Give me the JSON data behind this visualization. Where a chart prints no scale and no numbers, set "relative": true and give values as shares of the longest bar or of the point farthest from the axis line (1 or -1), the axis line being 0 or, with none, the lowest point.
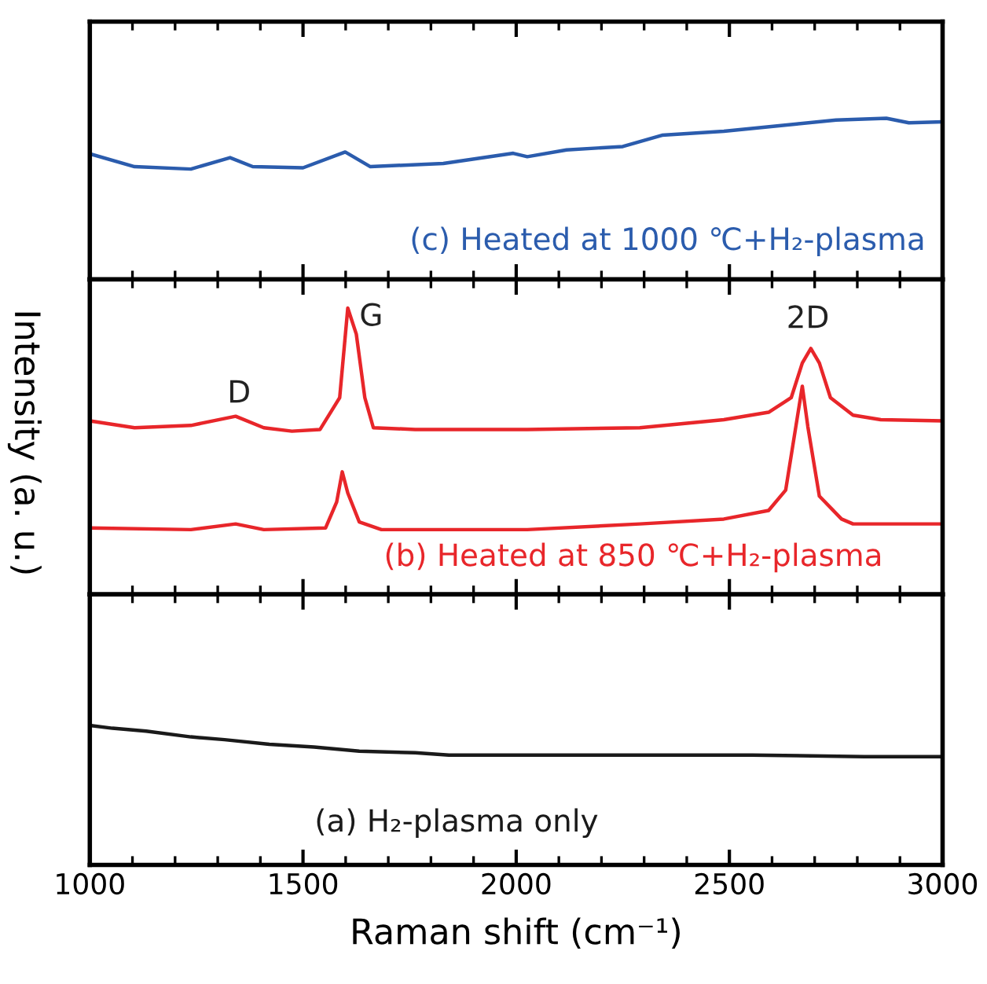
{
  "chart_data": [
    {
      "type": "line",
      "relative": true,
      "tick_labels": false,
      "xlim": [
        1000,
        3000
      ],
      "xticks": [
        1000,
        1500,
        2000,
        2500,
        3000
      ],
      "grid": false,
      "legend": false,
      "annotations": [
        "(c) Heated at 1000 ℃+H₂-plasma"
      ],
      "series": [
        {
          "color": "#2b5cad",
          "x": [
            1000,
            1105,
            1237,
            1329,
            1382,
            1500,
            1599,
            1658,
            1829,
            1993,
            2026,
            2118,
            2250,
            2342,
            2487,
            2658,
            2750,
            2868,
            2921,
            3000
          ],
          "values": [
            0.78,
            0.7,
            0.685,
            0.756,
            0.7,
            0.693,
            0.791,
            0.7,
            0.72,
            0.783,
            0.762,
            0.804,
            0.825,
            0.895,
            0.92,
            0.965,
            0.989,
            1.0,
            0.972,
            0.978
          ]
        }
      ]
    },
    {
      "type": "line",
      "relative": true,
      "tick_labels": false,
      "xlim": [
        1000,
        3000
      ],
      "xticks": [
        1000,
        1500,
        2000,
        2500,
        3000
      ],
      "grid": false,
      "legend": false,
      "ylabel": "Intensity (a. u.)",
      "annotations": [
        "(b) Heated at 850 ℃+H₂-plasma",
        "D",
        "G",
        "2D"
      ],
      "series": [
        {
          "color": "#e8262a",
          "x": [
            1000,
            1105,
            1237,
            1342,
            1408,
            1474,
            1540,
            1586,
            1605,
            1625,
            1645,
            1665,
            1763,
            2026,
            2290,
            2487,
            2592,
            2645,
            2671,
            2691,
            2711,
            2737,
            2790,
            2855,
            3000
          ],
          "values": [
            0.606,
            0.582,
            0.59,
            0.622,
            0.582,
            0.57,
            0.576,
            0.687,
            1.0,
            0.909,
            0.687,
            0.582,
            0.576,
            0.576,
            0.582,
            0.61,
            0.636,
            0.687,
            0.808,
            0.859,
            0.808,
            0.687,
            0.626,
            0.61,
            0.606
          ]
        },
        {
          "color": "#e8262a",
          "x": [
            1000,
            1237,
            1342,
            1408,
            1553,
            1579,
            1592,
            1605,
            1632,
            1684,
            2026,
            2290,
            2487,
            2592,
            2632,
            2658,
            2671,
            2684,
            2711,
            2763,
            2790,
            3000
          ],
          "values": [
            0.232,
            0.226,
            0.246,
            0.226,
            0.232,
            0.323,
            0.428,
            0.354,
            0.253,
            0.226,
            0.226,
            0.246,
            0.263,
            0.293,
            0.364,
            0.606,
            0.727,
            0.586,
            0.343,
            0.263,
            0.246,
            0.246
          ]
        }
      ]
    },
    {
      "type": "line",
      "relative": true,
      "tick_labels": "x",
      "xlim": [
        1000,
        3000
      ],
      "xticks": [
        1000,
        1500,
        2000,
        2500,
        3000
      ],
      "grid": false,
      "legend": false,
      "xlabel": "Raman shift (cm⁻¹)",
      "annotations": [
        "(a) H₂-plasma only"
      ],
      "series": [
        {
          "color": "#1a1a1a",
          "x": [
            1000,
            1053,
            1132,
            1237,
            1316,
            1421,
            1526,
            1632,
            1763,
            1842,
            2026,
            2290,
            2553,
            2816,
            3000
          ],
          "values": [
            1.0,
            0.98,
            0.959,
            0.918,
            0.898,
            0.865,
            0.845,
            0.816,
            0.804,
            0.788,
            0.788,
            0.788,
            0.788,
            0.776,
            0.776
          ]
        }
      ]
    }
  ]
}
